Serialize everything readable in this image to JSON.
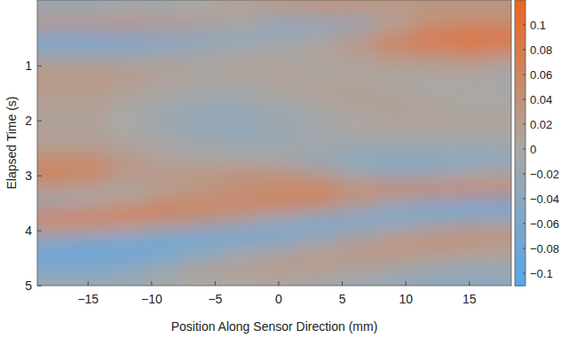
{
  "chart_data": {
    "type": "heatmap",
    "x_label": "Position Along Sensor Direction (mm)",
    "y_label": "Elapsed Time (s)",
    "x": [
      -18,
      -15,
      -12,
      -9,
      -6,
      -3,
      0,
      3,
      6,
      9,
      12,
      15,
      18
    ],
    "y": [
      0,
      0.25,
      0.5,
      0.75,
      1,
      1.25,
      1.5,
      1.75,
      2,
      2.25,
      2.5,
      2.75,
      3,
      3.25,
      3.5,
      3.75,
      4,
      4.25,
      4.5,
      4.75,
      5
    ],
    "values": [
      [
        -0.02,
        -0.02,
        -0.01,
        -0.01,
        0,
        0.01,
        0.02,
        0.03,
        0.03,
        0.03,
        0.03,
        0.03,
        0.03
      ],
      [
        0.04,
        0.04,
        0.04,
        0.03,
        0.02,
        0,
        -0.04,
        -0.05,
        -0.04,
        0,
        0.04,
        0.05,
        0.05
      ],
      [
        -0.08,
        -0.08,
        -0.07,
        -0.06,
        -0.05,
        -0.04,
        -0.02,
        0,
        0.03,
        0.07,
        0.09,
        0.1,
        0.1
      ],
      [
        -0.03,
        -0.03,
        -0.03,
        -0.02,
        -0.01,
        0,
        0,
        0.01,
        0.02,
        0.04,
        0.05,
        0.06,
        0.05
      ],
      [
        0.02,
        0.02,
        0.02,
        0.01,
        0.01,
        0.01,
        0.01,
        0,
        0,
        0.01,
        0.01,
        0.01,
        0
      ],
      [
        0.03,
        0.03,
        0.02,
        0.01,
        0,
        0,
        0.01,
        0.01,
        0.01,
        0,
        0,
        0,
        -0.01
      ],
      [
        0.02,
        0.02,
        0.01,
        0,
        -0.01,
        -0.01,
        0,
        0.01,
        0.01,
        0.01,
        0,
        0,
        0
      ],
      [
        0.01,
        0.01,
        0,
        -0.01,
        -0.02,
        -0.02,
        -0.01,
        0,
        0.01,
        0.01,
        0.01,
        0,
        0
      ],
      [
        0.01,
        0.01,
        0,
        -0.02,
        -0.03,
        -0.03,
        -0.02,
        -0.01,
        0,
        0.01,
        0.01,
        0.01,
        0.01
      ],
      [
        0.01,
        0.01,
        0,
        -0.01,
        -0.02,
        -0.03,
        -0.02,
        -0.01,
        0,
        0,
        0,
        0,
        0
      ],
      [
        0.02,
        0.02,
        0.01,
        0,
        -0.01,
        -0.01,
        -0.01,
        -0.01,
        -0.02,
        -0.02,
        -0.02,
        -0.02,
        -0.02
      ],
      [
        0.05,
        0.05,
        0.03,
        0.01,
        0,
        0,
        -0.01,
        -0.03,
        -0.04,
        -0.05,
        -0.05,
        -0.05,
        -0.04
      ],
      [
        0.07,
        0.06,
        0.03,
        0.03,
        0.04,
        0.05,
        0.05,
        0.03,
        -0.01,
        -0.03,
        -0.02,
        0,
        0.01
      ],
      [
        0.02,
        0.01,
        0,
        0.01,
        0.02,
        0.03,
        0.04,
        0.06,
        0.06,
        0.07,
        0.07,
        0.07,
        0.06
      ],
      [
        -0.03,
        -0.01,
        0.02,
        0.05,
        0.06,
        0.07,
        0.08,
        0.06,
        0.02,
        -0.02,
        -0.05,
        -0.07,
        -0.08
      ],
      [
        0.08,
        0.09,
        0.09,
        0.07,
        0.05,
        0.02,
        -0.01,
        -0.04,
        -0.06,
        -0.07,
        -0.06,
        -0.05,
        -0.04
      ],
      [
        0.02,
        0.01,
        -0.01,
        -0.03,
        -0.05,
        -0.06,
        -0.07,
        -0.06,
        -0.03,
        0,
        0.02,
        0.03,
        0.03
      ],
      [
        -0.07,
        -0.08,
        -0.08,
        -0.08,
        -0.07,
        -0.05,
        -0.03,
        0,
        0.02,
        0.04,
        0.04,
        0.04,
        0.03
      ],
      [
        -0.08,
        -0.08,
        -0.07,
        -0.05,
        -0.02,
        0,
        0.02,
        0.03,
        0.03,
        0.02,
        0.01,
        0,
        0
      ],
      [
        -0.04,
        -0.04,
        -0.03,
        -0.01,
        0.01,
        0.02,
        0.02,
        0.01,
        0,
        -0.01,
        -0.02,
        -0.03,
        -0.03
      ],
      [
        -0.02,
        -0.02,
        -0.02,
        -0.01,
        0,
        0,
        0,
        -0.01,
        -0.02,
        -0.03,
        -0.04,
        -0.04,
        -0.04
      ]
    ],
    "xlim": [
      -19,
      18.3
    ],
    "ylim": [
      5,
      -0.2
    ],
    "xticks": [
      {
        "value": -15,
        "label": "−15"
      },
      {
        "value": -10,
        "label": "−10"
      },
      {
        "value": -5,
        "label": "−5"
      },
      0,
      5,
      10,
      15
    ],
    "yticks": [
      1,
      2,
      3,
      4,
      5
    ],
    "colorbar_range": [
      -0.11,
      0.12
    ],
    "colorbar_ticks": [
      0.1,
      0.08,
      0.06,
      0.04,
      0.02,
      0,
      {
        "value": -0.02,
        "label": "−0.02"
      },
      {
        "value": -0.04,
        "label": "−0.04"
      },
      {
        "value": -0.06,
        "label": "−0.06"
      },
      {
        "value": -0.08,
        "label": "−0.08"
      },
      {
        "value": -0.1,
        "label": "−0.1"
      }
    ]
  }
}
